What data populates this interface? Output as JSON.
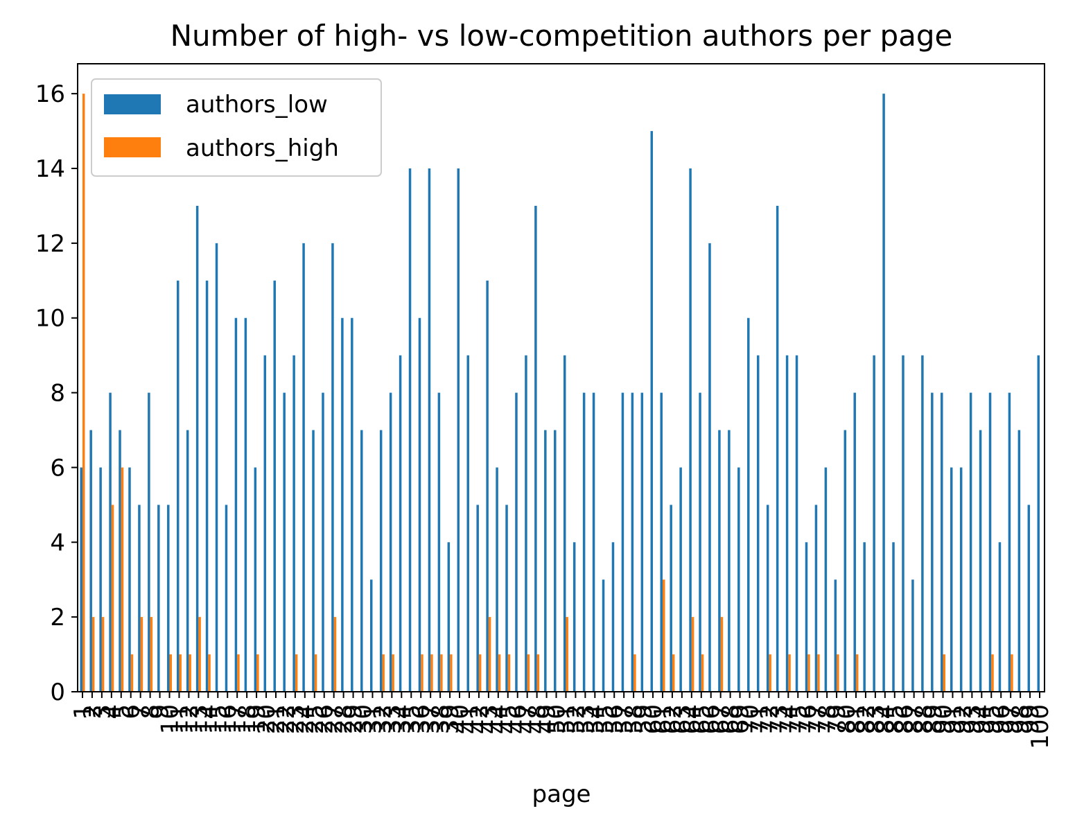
{
  "chart_data": {
    "type": "bar",
    "title": "Number of high- vs low-competition authors per page",
    "xlabel": "page",
    "ylabel": "",
    "ylim": [
      0,
      16.8
    ],
    "yticks": [
      0,
      2,
      4,
      6,
      8,
      10,
      12,
      14,
      16
    ],
    "grid": false,
    "legend_position": "top-left",
    "categories": [
      1,
      2,
      3,
      4,
      5,
      6,
      7,
      8,
      9,
      10,
      11,
      12,
      13,
      14,
      15,
      16,
      17,
      18,
      19,
      20,
      21,
      22,
      23,
      24,
      25,
      26,
      27,
      28,
      29,
      30,
      31,
      32,
      33,
      34,
      35,
      36,
      37,
      38,
      39,
      40,
      41,
      42,
      43,
      44,
      45,
      46,
      47,
      48,
      49,
      50,
      51,
      52,
      53,
      54,
      55,
      56,
      57,
      58,
      59,
      60,
      61,
      62,
      63,
      64,
      65,
      66,
      67,
      68,
      69,
      70,
      71,
      72,
      73,
      74,
      75,
      76,
      77,
      78,
      79,
      80,
      81,
      82,
      83,
      84,
      85,
      86,
      87,
      88,
      89,
      90,
      91,
      92,
      93,
      94,
      95,
      96,
      97,
      98,
      99,
      100
    ],
    "series": [
      {
        "name": "authors_low",
        "color": "#1f77b4",
        "values": [
          6,
          7,
          6,
          8,
          7,
          6,
          5,
          8,
          5,
          5,
          11,
          7,
          13,
          11,
          12,
          5,
          10,
          10,
          6,
          9,
          11,
          8,
          9,
          12,
          7,
          8,
          12,
          10,
          10,
          7,
          3,
          7,
          8,
          9,
          14,
          10,
          14,
          8,
          4,
          14,
          9,
          5,
          11,
          6,
          5,
          8,
          9,
          13,
          7,
          7,
          9,
          4,
          8,
          8,
          3,
          4,
          8,
          8,
          8,
          15,
          8,
          5,
          6,
          14,
          8,
          12,
          7,
          7,
          6,
          10,
          9,
          5,
          13,
          9,
          9,
          4,
          5,
          6,
          3,
          7,
          8,
          4,
          9,
          16,
          4,
          9,
          3,
          9,
          8,
          8,
          6,
          6,
          8,
          7,
          8,
          4,
          8,
          7,
          5,
          9
        ]
      },
      {
        "name": "authors_high",
        "color": "#ff7f0e",
        "values": [
          16,
          2,
          2,
          5,
          6,
          1,
          2,
          2,
          0,
          1,
          1,
          1,
          2,
          1,
          0,
          0,
          1,
          0,
          1,
          0,
          0,
          0,
          1,
          0,
          1,
          0,
          2,
          0,
          0,
          0,
          0,
          1,
          1,
          0,
          0,
          1,
          1,
          1,
          1,
          0,
          0,
          1,
          2,
          1,
          1,
          0,
          1,
          1,
          0,
          0,
          2,
          0,
          0,
          0,
          0,
          0,
          0,
          1,
          0,
          0,
          3,
          1,
          0,
          2,
          1,
          0,
          2,
          0,
          0,
          0,
          0,
          1,
          0,
          1,
          0,
          1,
          1,
          0,
          1,
          0,
          1,
          0,
          0,
          0,
          0,
          0,
          0,
          0,
          0,
          1,
          0,
          0,
          0,
          0,
          1,
          0,
          1,
          0,
          0,
          0
        ]
      }
    ]
  }
}
